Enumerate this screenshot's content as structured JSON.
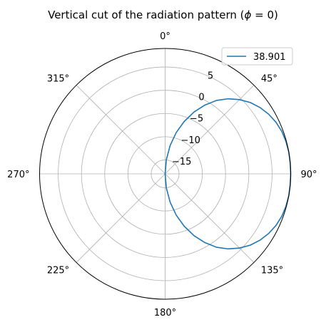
{
  "chart_data": {
    "type": "line",
    "projection": "polar",
    "title": "Vertical cut of the radiation pattern (ϕ = 0)",
    "title_parts": {
      "prefix": "Vertical cut of the radiation pattern (",
      "symbol": "ϕ",
      "suffix": " = 0)"
    },
    "theta_zero_location": "top",
    "theta_direction": "clockwise",
    "theta_unit": "degrees",
    "angle_ticks": [
      0,
      45,
      90,
      135,
      180,
      225,
      270,
      315
    ],
    "angle_tick_labels": [
      "0°",
      "45°",
      "90°",
      "135°",
      "180°",
      "225°",
      "270°",
      "315°"
    ],
    "rlim": [
      -18,
      9
    ],
    "r_ticks": [
      -15,
      -10,
      -5,
      0,
      5
    ],
    "r_tick_labels": [
      "−15",
      "−10",
      "−5",
      "0",
      "5"
    ],
    "r_label_angle_deg": 22.5,
    "grid": true,
    "legend": {
      "location": "upper-right",
      "entries": [
        "38.901"
      ]
    },
    "series": [
      {
        "name": "38.901",
        "color": "#1f77b4",
        "theta_deg": [
          0,
          5,
          10,
          15,
          20,
          25,
          30,
          35,
          40,
          45,
          50,
          55,
          60,
          65,
          70,
          75,
          80,
          85,
          90,
          95,
          100,
          105,
          110,
          115,
          120,
          125,
          130,
          135,
          140,
          145,
          150,
          155,
          160,
          165,
          170,
          175,
          180
        ],
        "r_dB": [
          -18,
          -14.9,
          -11.8,
          -8.8,
          -6.0,
          -3.3,
          -0.9,
          1.3,
          3.1,
          4.6,
          5.9,
          6.9,
          7.7,
          8.3,
          8.7,
          8.9,
          9.0,
          9.0,
          9.0,
          9.0,
          9.0,
          8.9,
          8.7,
          8.3,
          7.7,
          6.9,
          5.9,
          4.6,
          3.1,
          1.3,
          -0.9,
          -3.3,
          -6.0,
          -8.8,
          -11.8,
          -14.9,
          -18
        ]
      }
    ]
  }
}
